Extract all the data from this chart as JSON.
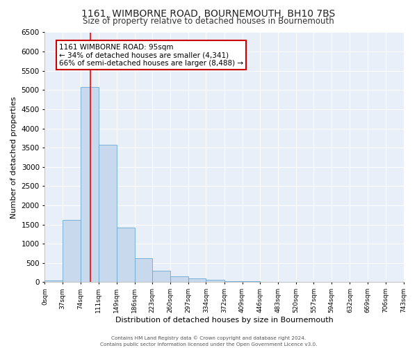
{
  "title": "1161, WIMBORNE ROAD, BOURNEMOUTH, BH10 7BS",
  "subtitle": "Size of property relative to detached houses in Bournemouth",
  "xlabel": "Distribution of detached houses by size in Bournemouth",
  "ylabel": "Number of detached properties",
  "bar_color": "#c8d9ee",
  "bar_edge_color": "#6aaad4",
  "bar_left_edges": [
    0,
    37,
    74,
    111,
    149,
    186,
    223,
    260,
    297,
    334,
    372,
    409,
    446,
    483,
    520,
    557,
    594,
    632,
    669,
    706
  ],
  "bar_widths": [
    37,
    37,
    37,
    38,
    37,
    37,
    37,
    37,
    37,
    38,
    37,
    37,
    37,
    37,
    37,
    37,
    38,
    37,
    37,
    37
  ],
  "bar_heights": [
    50,
    1620,
    5080,
    3580,
    1420,
    620,
    300,
    150,
    100,
    55,
    30,
    30,
    0,
    0,
    0,
    0,
    0,
    0,
    0,
    0
  ],
  "tick_labels": [
    "0sqm",
    "37sqm",
    "74sqm",
    "111sqm",
    "149sqm",
    "186sqm",
    "223sqm",
    "260sqm",
    "297sqm",
    "334sqm",
    "372sqm",
    "409sqm",
    "446sqm",
    "483sqm",
    "520sqm",
    "557sqm",
    "594sqm",
    "632sqm",
    "669sqm",
    "706sqm",
    "743sqm"
  ],
  "ylim": [
    0,
    6500
  ],
  "yticks": [
    0,
    500,
    1000,
    1500,
    2000,
    2500,
    3000,
    3500,
    4000,
    4500,
    5000,
    5500,
    6000,
    6500
  ],
  "red_line_x": 95,
  "annotation_title": "1161 WIMBORNE ROAD: 95sqm",
  "annotation_line1": "← 34% of detached houses are smaller (4,341)",
  "annotation_line2": "66% of semi-detached houses are larger (8,488) →",
  "annotation_box_color": "#ffffff",
  "annotation_box_edge": "#cc0000",
  "footer1": "Contains HM Land Registry data © Crown copyright and database right 2024.",
  "footer2": "Contains public sector information licensed under the Open Government Licence v3.0.",
  "fig_background": "#ffffff",
  "plot_background": "#e8eff8",
  "grid_color": "#ffffff",
  "title_fontsize": 10,
  "subtitle_fontsize": 8.5,
  "axis_label_fontsize": 8,
  "tick_fontsize": 6.5,
  "ytick_fontsize": 7.5
}
